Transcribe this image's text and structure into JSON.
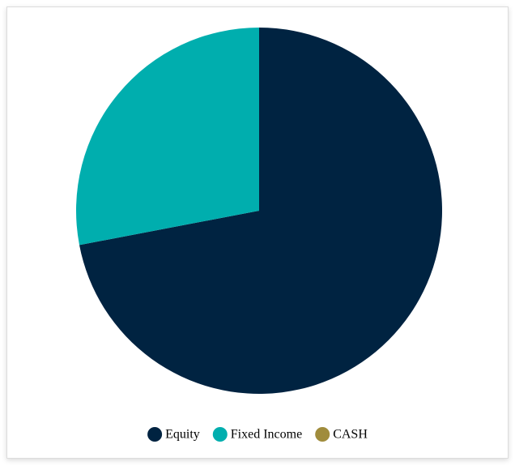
{
  "chart_data": {
    "type": "pie",
    "categories": [
      "Equity",
      "Fixed Income",
      "CASH"
    ],
    "values": [
      72,
      28,
      0
    ],
    "colors": [
      "#002341",
      "#00aeae",
      "#a08c3c"
    ],
    "legend": "bottom"
  }
}
